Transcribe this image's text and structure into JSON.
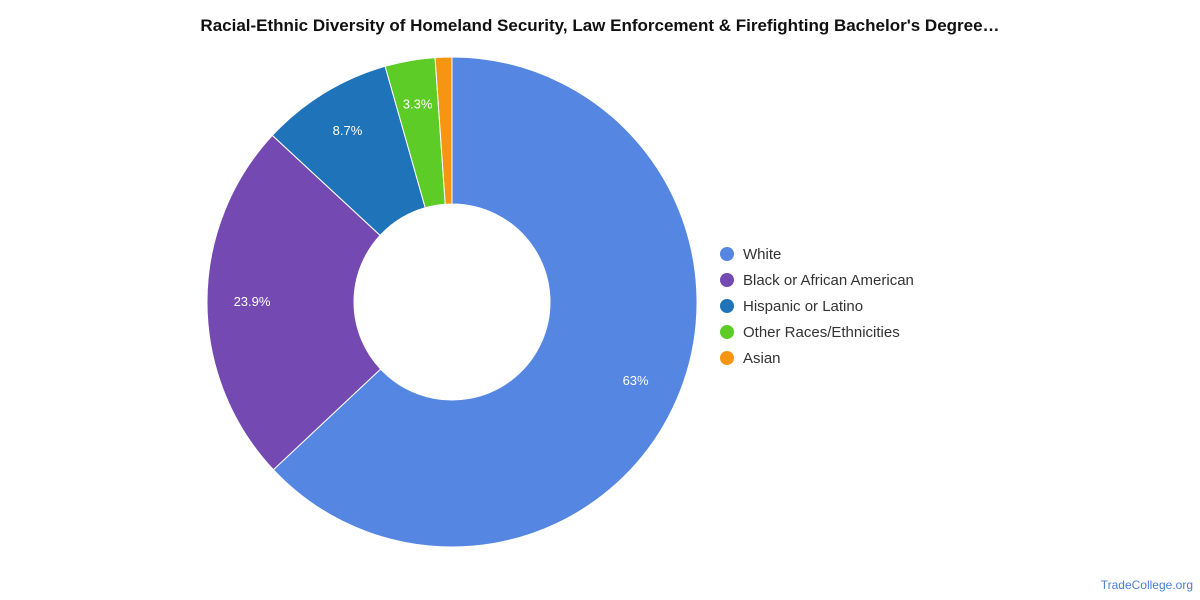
{
  "chart_data": {
    "type": "pie",
    "title": "Racial-Ethnic Diversity of Homeland Security, Law Enforcement & Firefighting Bachelor's Degree…",
    "slices": [
      {
        "name": "White",
        "value": 63.0,
        "label": "63%",
        "color": "#5486e2"
      },
      {
        "name": "Black or African American",
        "value": 23.9,
        "label": "23.9%",
        "color": "#7449b2"
      },
      {
        "name": "Hispanic or Latino",
        "value": 8.7,
        "label": "8.7%",
        "color": "#1f73b8"
      },
      {
        "name": "Other Races/Ethnicities",
        "value": 3.3,
        "label": "3.3%",
        "color": "#5dcc26"
      },
      {
        "name": "Asian",
        "value": 1.1,
        "label": "",
        "color": "#f59511"
      }
    ],
    "legend_position": "right"
  },
  "credit": "TradeCollege.org"
}
